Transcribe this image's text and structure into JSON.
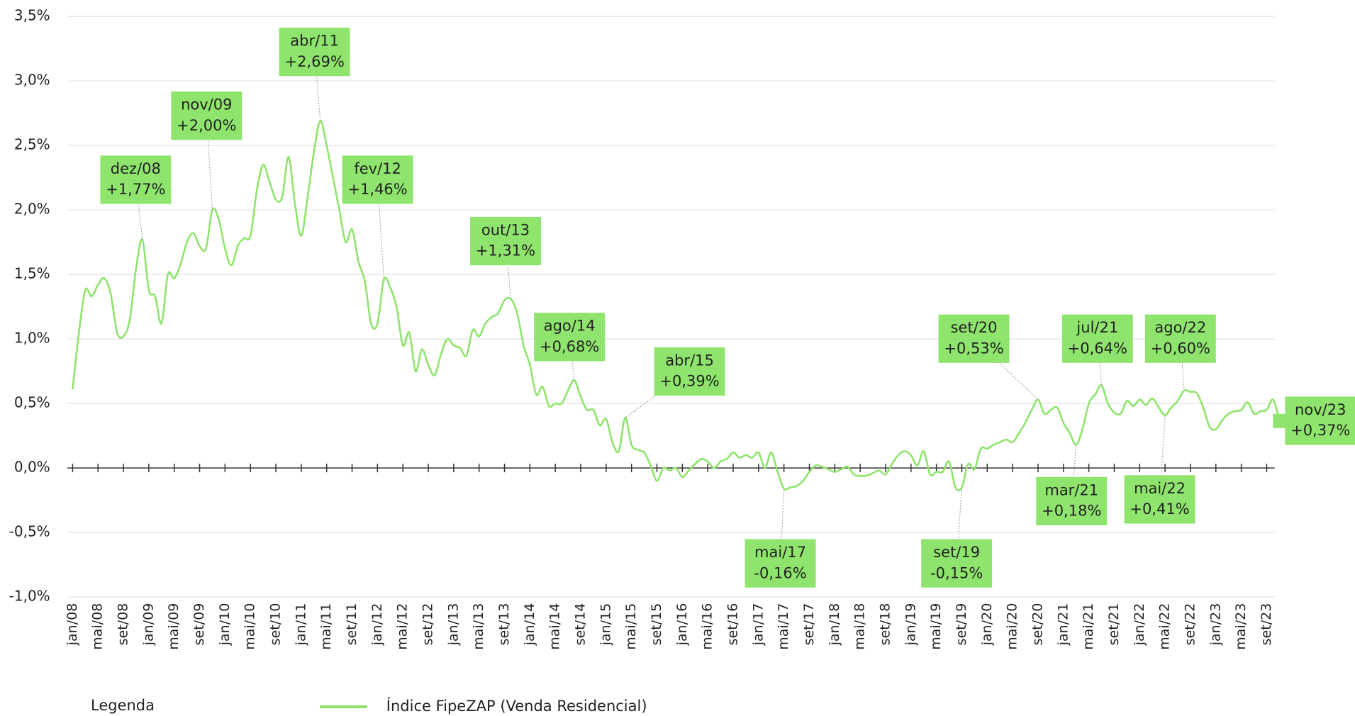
{
  "chart_data": {
    "type": "line",
    "legend_title": "Legenda",
    "categories": [
      "jan/08",
      null,
      null,
      null,
      "mai/08",
      null,
      null,
      null,
      "set/08",
      null,
      null,
      null,
      "jan/09",
      null,
      null,
      null,
      "mai/09",
      null,
      null,
      null,
      "set/09",
      null,
      null,
      null,
      "jan/10",
      null,
      null,
      null,
      "mai/10",
      null,
      null,
      null,
      "set/10",
      null,
      null,
      null,
      "jan/11",
      null,
      null,
      null,
      "mai/11",
      null,
      null,
      null,
      "set/11",
      null,
      null,
      null,
      "jan/12",
      null,
      null,
      null,
      "mai/12",
      null,
      null,
      null,
      "set/12",
      null,
      null,
      null,
      "jan/13",
      null,
      null,
      null,
      "mai/13",
      null,
      null,
      null,
      "set/13",
      null,
      null,
      null,
      "jan/14",
      null,
      null,
      null,
      "mai/14",
      null,
      null,
      null,
      "set/14",
      null,
      null,
      null,
      "jan/15",
      null,
      null,
      null,
      "mai/15",
      null,
      null,
      null,
      "set/15",
      null,
      null,
      null,
      "jan/16",
      null,
      null,
      null,
      "mai/16",
      null,
      null,
      null,
      "set/16",
      null,
      null,
      null,
      "jan/17",
      null,
      null,
      null,
      "mai/17",
      null,
      null,
      null,
      "set/17",
      null,
      null,
      null,
      "jan/18",
      null,
      null,
      null,
      "mai/18",
      null,
      null,
      null,
      "set/18",
      null,
      null,
      null,
      "jan/19",
      null,
      null,
      null,
      "mai/19",
      null,
      null,
      null,
      "set/19",
      null,
      null,
      null,
      "jan/20",
      null,
      null,
      null,
      "mai/20",
      null,
      null,
      null,
      "set/20",
      null,
      null,
      null,
      "jan/21",
      null,
      null,
      null,
      "mai/21",
      null,
      null,
      null,
      "set/21",
      null,
      null,
      null,
      "jan/22",
      null,
      null,
      null,
      "mai/22",
      null,
      null,
      null,
      "set/22",
      null,
      null,
      null,
      "jan/23",
      null,
      null,
      null,
      "mai/23",
      null,
      null,
      null,
      "set/23",
      null,
      null
    ],
    "series": [
      {
        "name": "Índice FipeZAP (Venda Residencial)",
        "color": "#8ee46c",
        "values": [
          0.61,
          1.05,
          1.38,
          1.33,
          1.42,
          1.47,
          1.35,
          1.05,
          1.02,
          1.15,
          1.55,
          1.77,
          1.38,
          1.33,
          1.12,
          1.5,
          1.47,
          1.58,
          1.75,
          1.82,
          1.72,
          1.7,
          2.0,
          1.93,
          1.7,
          1.57,
          1.72,
          1.78,
          1.8,
          2.15,
          2.35,
          2.22,
          2.08,
          2.1,
          2.41,
          2.05,
          1.8,
          2.1,
          2.45,
          2.69,
          2.5,
          2.25,
          2.0,
          1.75,
          1.85,
          1.6,
          1.45,
          1.12,
          1.12,
          1.46,
          1.4,
          1.25,
          0.95,
          1.05,
          0.75,
          0.92,
          0.8,
          0.72,
          0.88,
          1.0,
          0.95,
          0.93,
          0.87,
          1.07,
          1.02,
          1.12,
          1.17,
          1.2,
          1.3,
          1.31,
          1.2,
          0.95,
          0.8,
          0.57,
          0.63,
          0.48,
          0.5,
          0.5,
          0.6,
          0.68,
          0.55,
          0.45,
          0.45,
          0.33,
          0.38,
          0.2,
          0.13,
          0.39,
          0.18,
          0.14,
          0.12,
          0.02,
          -0.1,
          0.0,
          -0.02,
          0.0,
          -0.07,
          -0.02,
          0.03,
          0.07,
          0.05,
          0.0,
          0.05,
          0.07,
          0.12,
          0.08,
          0.1,
          0.08,
          0.12,
          0.0,
          0.12,
          -0.03,
          -0.16,
          -0.15,
          -0.14,
          -0.1,
          -0.03,
          0.02,
          0.01,
          -0.01,
          -0.03,
          -0.01,
          0.01,
          -0.05,
          -0.06,
          -0.06,
          -0.04,
          -0.02,
          -0.05,
          0.03,
          0.1,
          0.13,
          0.1,
          0.02,
          0.13,
          -0.05,
          -0.03,
          -0.03,
          0.05,
          -0.15,
          -0.15,
          0.03,
          -0.01,
          0.15,
          0.15,
          0.18,
          0.2,
          0.22,
          0.2,
          0.27,
          0.35,
          0.45,
          0.53,
          0.42,
          0.45,
          0.47,
          0.35,
          0.27,
          0.18,
          0.3,
          0.5,
          0.57,
          0.64,
          0.5,
          0.43,
          0.42,
          0.52,
          0.48,
          0.53,
          0.49,
          0.54,
          0.47,
          0.41,
          0.47,
          0.52,
          0.6,
          0.59,
          0.58,
          0.47,
          0.32,
          0.3,
          0.37,
          0.42,
          0.44,
          0.45,
          0.51,
          0.42,
          0.44,
          0.45,
          0.53,
          0.37
        ],
        "value_labels": [
          null,
          null,
          null,
          null,
          null,
          null,
          null,
          null,
          null,
          null,
          null,
          "+1,77%",
          null,
          null,
          null,
          null,
          null,
          null,
          null,
          null,
          null,
          null,
          "+2,00%",
          null,
          null,
          null,
          null,
          null,
          null,
          null,
          null,
          null,
          null,
          null,
          null,
          null,
          null,
          null,
          null,
          "+2,69%",
          null,
          null,
          null,
          null,
          null,
          null,
          null,
          null,
          null,
          "+1,46%",
          null,
          null,
          null,
          null,
          null,
          null,
          null,
          null,
          null,
          null,
          null,
          null,
          null,
          null,
          null,
          null,
          null,
          null,
          null,
          "+1,31%",
          null,
          null,
          null,
          null,
          null,
          null,
          null,
          null,
          null,
          "+0,68%",
          null,
          null,
          null,
          null,
          null,
          null,
          null,
          "+0,39%",
          null,
          null,
          null,
          null,
          null,
          null,
          null,
          null,
          null,
          null,
          null,
          null,
          null,
          null,
          null,
          null,
          null,
          null,
          null,
          null,
          null,
          null,
          null,
          null,
          "-0,16%",
          null,
          null,
          null,
          null,
          null,
          null,
          null,
          null,
          null,
          null,
          null,
          null,
          null,
          null,
          null,
          null,
          null,
          null,
          null,
          null,
          null,
          null,
          null,
          null,
          null,
          null,
          null,
          "-0,15%",
          null,
          null,
          null,
          null,
          null,
          null,
          null,
          null,
          null,
          null,
          null,
          "+0,53%",
          null,
          null,
          null,
          null,
          null,
          "+0,18%",
          null,
          null,
          null,
          "+0,64%",
          null,
          null,
          null,
          null,
          null,
          null,
          null,
          null,
          null,
          "+0,41%",
          null,
          null,
          "+0,60%",
          null,
          null,
          null,
          null,
          null,
          null,
          null,
          null,
          null,
          null,
          null,
          null,
          null,
          null,
          "+0,37%"
        ],
        "point_labels": [
          null,
          null,
          null,
          null,
          null,
          null,
          null,
          null,
          null,
          null,
          null,
          "dez/08",
          null,
          null,
          null,
          null,
          null,
          null,
          null,
          null,
          null,
          null,
          "nov/09",
          null,
          null,
          null,
          null,
          null,
          null,
          null,
          null,
          null,
          null,
          null,
          null,
          null,
          null,
          null,
          null,
          "abr/11",
          null,
          null,
          null,
          null,
          null,
          null,
          null,
          null,
          null,
          "fev/12",
          null,
          null,
          null,
          null,
          null,
          null,
          null,
          null,
          null,
          null,
          null,
          null,
          null,
          null,
          null,
          null,
          null,
          null,
          null,
          "out/13",
          null,
          null,
          null,
          null,
          null,
          null,
          null,
          null,
          null,
          "ago/14",
          null,
          null,
          null,
          null,
          null,
          null,
          null,
          "abr/15",
          null,
          null,
          null,
          null,
          null,
          null,
          null,
          null,
          null,
          null,
          null,
          null,
          null,
          null,
          null,
          null,
          null,
          null,
          null,
          null,
          null,
          null,
          null,
          null,
          "mai/17",
          null,
          null,
          null,
          null,
          null,
          null,
          null,
          null,
          null,
          null,
          null,
          null,
          null,
          null,
          null,
          null,
          null,
          null,
          null,
          null,
          null,
          null,
          null,
          null,
          null,
          null,
          null,
          "set/19",
          null,
          null,
          null,
          null,
          null,
          null,
          null,
          null,
          null,
          null,
          null,
          "set/20",
          null,
          null,
          null,
          null,
          null,
          "mar/21",
          null,
          null,
          null,
          "jul/21",
          null,
          null,
          null,
          null,
          null,
          null,
          null,
          null,
          null,
          "mai/22",
          null,
          null,
          "ago/22",
          null,
          null,
          null,
          null,
          null,
          null,
          null,
          null,
          null,
          null,
          null,
          null,
          null,
          null,
          "nov/23"
        ]
      }
    ],
    "ylim": [
      -1.0,
      3.5
    ],
    "yticks": [
      {
        "value": -1.0,
        "label": "-1,0%"
      },
      {
        "value": -0.5,
        "label": "-0,5%"
      },
      {
        "value": 0.0,
        "label": "0,0%"
      },
      {
        "value": 0.5,
        "label": "0,5%"
      },
      {
        "value": 1.0,
        "label": "1,0%"
      },
      {
        "value": 1.5,
        "label": "1,5%"
      },
      {
        "value": 2.0,
        "label": "2,0%"
      },
      {
        "value": 2.5,
        "label": "2,5%"
      },
      {
        "value": 3.0,
        "label": "3,0%"
      },
      {
        "value": 3.5,
        "label": "3,5%"
      }
    ],
    "grid": true
  }
}
